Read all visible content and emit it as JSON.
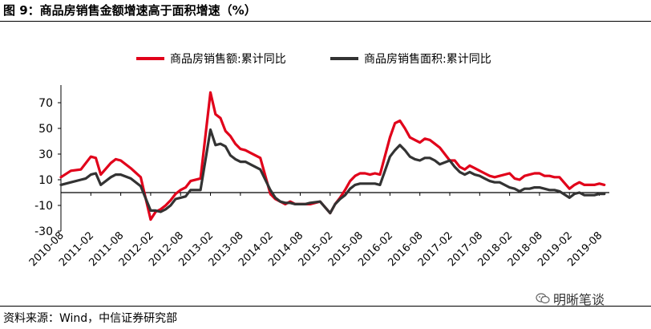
{
  "figure": {
    "title": "图 9：商品房销售金额增速高于面积增速（%）",
    "source": "资料来源：Wind，中信证券研究部",
    "watermark": "明晰笔谈"
  },
  "colors": {
    "amount": "#e1001a",
    "area": "#333333",
    "zero_line": "#000000"
  },
  "chart_data": {
    "type": "line",
    "title": "",
    "xlabel": "",
    "ylabel": "",
    "ylim": [
      -30,
      80
    ],
    "yticks": [
      -30,
      -10,
      10,
      30,
      50,
      70
    ],
    "xlim": [
      "2010-08",
      "2019-10"
    ],
    "xticks": [
      "2010-08",
      "2011-02",
      "2011-08",
      "2012-02",
      "2012-08",
      "2013-02",
      "2013-08",
      "2014-02",
      "2014-08",
      "2015-02",
      "2015-08",
      "2016-02",
      "2016-08",
      "2017-02",
      "2017-08",
      "2018-02",
      "2018-08",
      "2019-02",
      "2019-08"
    ],
    "legend_position": "top",
    "grid": false,
    "series": [
      {
        "name": "商品房销售额:累计同比",
        "color_key": "amount",
        "points": [
          [
            "2010-08",
            12
          ],
          [
            "2010-10",
            17
          ],
          [
            "2010-12",
            18
          ],
          [
            "2011-01",
            23
          ],
          [
            "2011-02",
            28
          ],
          [
            "2011-03",
            27
          ],
          [
            "2011-04",
            14
          ],
          [
            "2011-06",
            23
          ],
          [
            "2011-07",
            26
          ],
          [
            "2011-08",
            25
          ],
          [
            "2011-10",
            19
          ],
          [
            "2011-12",
            12
          ],
          [
            "2012-02",
            -21
          ],
          [
            "2012-03",
            -15
          ],
          [
            "2012-04",
            -13
          ],
          [
            "2012-05",
            -10
          ],
          [
            "2012-06",
            -6
          ],
          [
            "2012-07",
            -1
          ],
          [
            "2012-08",
            2
          ],
          [
            "2012-09",
            4
          ],
          [
            "2012-10",
            9
          ],
          [
            "2012-12",
            11
          ],
          [
            "2013-02",
            78
          ],
          [
            "2013-03",
            61
          ],
          [
            "2013-04",
            58
          ],
          [
            "2013-05",
            48
          ],
          [
            "2013-06",
            44
          ],
          [
            "2013-07",
            38
          ],
          [
            "2013-08",
            34
          ],
          [
            "2013-09",
            33
          ],
          [
            "2013-10",
            31
          ],
          [
            "2013-12",
            27
          ],
          [
            "2014-02",
            -1
          ],
          [
            "2014-03",
            -5
          ],
          [
            "2014-04",
            -7
          ],
          [
            "2014-05",
            -9
          ],
          [
            "2014-06",
            -7
          ],
          [
            "2014-07",
            -9
          ],
          [
            "2014-08",
            -9
          ],
          [
            "2014-09",
            -9
          ],
          [
            "2014-10",
            -9
          ],
          [
            "2014-12",
            -7
          ],
          [
            "2015-02",
            -16
          ],
          [
            "2015-03",
            -9
          ],
          [
            "2015-04",
            -4
          ],
          [
            "2015-05",
            2
          ],
          [
            "2015-06",
            9
          ],
          [
            "2015-07",
            13
          ],
          [
            "2015-08",
            15
          ],
          [
            "2015-09",
            15
          ],
          [
            "2015-10",
            14
          ],
          [
            "2015-11",
            15
          ],
          [
            "2015-12",
            14
          ],
          [
            "2016-02",
            43
          ],
          [
            "2016-03",
            54
          ],
          [
            "2016-04",
            56
          ],
          [
            "2016-05",
            50
          ],
          [
            "2016-06",
            43
          ],
          [
            "2016-07",
            41
          ],
          [
            "2016-08",
            39
          ],
          [
            "2016-09",
            42
          ],
          [
            "2016-10",
            41
          ],
          [
            "2016-11",
            38
          ],
          [
            "2016-12",
            35
          ],
          [
            "2017-02",
            25
          ],
          [
            "2017-03",
            25
          ],
          [
            "2017-04",
            20
          ],
          [
            "2017-05",
            18
          ],
          [
            "2017-06",
            21
          ],
          [
            "2017-07",
            19
          ],
          [
            "2017-08",
            17
          ],
          [
            "2017-09",
            15
          ],
          [
            "2017-10",
            13
          ],
          [
            "2017-11",
            12
          ],
          [
            "2017-12",
            13
          ],
          [
            "2018-02",
            15
          ],
          [
            "2018-03",
            11
          ],
          [
            "2018-04",
            10
          ],
          [
            "2018-05",
            13
          ],
          [
            "2018-06",
            14
          ],
          [
            "2018-07",
            15
          ],
          [
            "2018-08",
            15
          ],
          [
            "2018-09",
            13
          ],
          [
            "2018-10",
            13
          ],
          [
            "2018-11",
            12
          ],
          [
            "2018-12",
            12
          ],
          [
            "2019-02",
            3
          ],
          [
            "2019-03",
            6
          ],
          [
            "2019-04",
            8
          ],
          [
            "2019-05",
            6
          ],
          [
            "2019-06",
            6
          ],
          [
            "2019-07",
            6
          ],
          [
            "2019-08",
            7
          ],
          [
            "2019-09",
            6
          ]
        ]
      },
      {
        "name": "商品房销售面积:累计同比",
        "color_key": "area",
        "points": [
          [
            "2010-08",
            6
          ],
          [
            "2010-10",
            8
          ],
          [
            "2010-12",
            10
          ],
          [
            "2011-01",
            11
          ],
          [
            "2011-02",
            14
          ],
          [
            "2011-03",
            15
          ],
          [
            "2011-04",
            6
          ],
          [
            "2011-06",
            12
          ],
          [
            "2011-07",
            14
          ],
          [
            "2011-08",
            14
          ],
          [
            "2011-10",
            11
          ],
          [
            "2011-12",
            5
          ],
          [
            "2012-02",
            -14
          ],
          [
            "2012-03",
            -14
          ],
          [
            "2012-04",
            -15
          ],
          [
            "2012-05",
            -13
          ],
          [
            "2012-06",
            -10
          ],
          [
            "2012-07",
            -5
          ],
          [
            "2012-08",
            -4
          ],
          [
            "2012-09",
            -3
          ],
          [
            "2012-10",
            2
          ],
          [
            "2012-12",
            2
          ],
          [
            "2013-02",
            49
          ],
          [
            "2013-03",
            37
          ],
          [
            "2013-04",
            38
          ],
          [
            "2013-05",
            36
          ],
          [
            "2013-06",
            29
          ],
          [
            "2013-07",
            26
          ],
          [
            "2013-08",
            24
          ],
          [
            "2013-09",
            24
          ],
          [
            "2013-10",
            22
          ],
          [
            "2013-12",
            18
          ],
          [
            "2014-02",
            2
          ],
          [
            "2014-03",
            -4
          ],
          [
            "2014-04",
            -7
          ],
          [
            "2014-05",
            -8
          ],
          [
            "2014-06",
            -8
          ],
          [
            "2014-07",
            -9
          ],
          [
            "2014-08",
            -9
          ],
          [
            "2014-09",
            -9
          ],
          [
            "2014-10",
            -8
          ],
          [
            "2014-12",
            -7
          ],
          [
            "2015-02",
            -16
          ],
          [
            "2015-03",
            -9
          ],
          [
            "2015-04",
            -5
          ],
          [
            "2015-05",
            -2
          ],
          [
            "2015-06",
            3
          ],
          [
            "2015-07",
            6
          ],
          [
            "2015-08",
            7
          ],
          [
            "2015-09",
            7
          ],
          [
            "2015-10",
            7
          ],
          [
            "2015-11",
            7
          ],
          [
            "2015-12",
            6
          ],
          [
            "2016-02",
            28
          ],
          [
            "2016-03",
            33
          ],
          [
            "2016-04",
            37
          ],
          [
            "2016-05",
            33
          ],
          [
            "2016-06",
            28
          ],
          [
            "2016-07",
            26
          ],
          [
            "2016-08",
            25
          ],
          [
            "2016-09",
            27
          ],
          [
            "2016-10",
            27
          ],
          [
            "2016-11",
            25
          ],
          [
            "2016-12",
            22
          ],
          [
            "2017-02",
            25
          ],
          [
            "2017-03",
            20
          ],
          [
            "2017-04",
            16
          ],
          [
            "2017-05",
            14
          ],
          [
            "2017-06",
            16
          ],
          [
            "2017-07",
            14
          ],
          [
            "2017-08",
            13
          ],
          [
            "2017-09",
            11
          ],
          [
            "2017-10",
            9
          ],
          [
            "2017-11",
            8
          ],
          [
            "2017-12",
            8
          ],
          [
            "2018-02",
            4
          ],
          [
            "2018-03",
            3
          ],
          [
            "2018-04",
            1
          ],
          [
            "2018-05",
            3
          ],
          [
            "2018-06",
            3
          ],
          [
            "2018-07",
            4
          ],
          [
            "2018-08",
            4
          ],
          [
            "2018-09",
            3
          ],
          [
            "2018-10",
            2
          ],
          [
            "2018-11",
            2
          ],
          [
            "2018-12",
            1
          ],
          [
            "2019-02",
            -4
          ],
          [
            "2019-03",
            -1
          ],
          [
            "2019-04",
            0
          ],
          [
            "2019-05",
            -2
          ],
          [
            "2019-06",
            -2
          ],
          [
            "2019-07",
            -2
          ],
          [
            "2019-08",
            -1
          ],
          [
            "2019-09",
            -1
          ]
        ]
      }
    ]
  }
}
